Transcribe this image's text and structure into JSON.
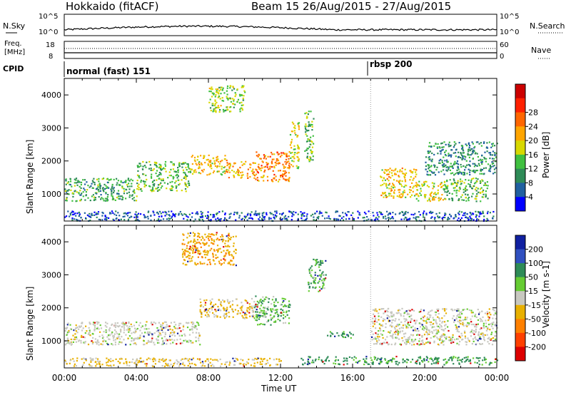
{
  "header": {
    "station": "Hokkaido (fitACF)",
    "beam_info": "Beam 15 26/Aug/2015 - 27/Aug/2015"
  },
  "top_panels": {
    "nsky_label": "N.Sky",
    "nsearch_label": "N.Search",
    "nsky_ticks": [
      "10^5",
      "10^0"
    ],
    "nsearch_ticks": [
      "10^5",
      "10^0"
    ],
    "freq_label_1": "Freq.",
    "freq_label_2": "[MHz]",
    "freq_ticks": [
      "18",
      "8"
    ],
    "nave_label": "Nave",
    "nave_ticks": [
      "60",
      "0"
    ],
    "cpid_label": "CPID",
    "cpid_modes": [
      {
        "name": "normal (fast) 151",
        "start_hour": 0
      },
      {
        "name": "rbsp 200",
        "start_hour": 17
      }
    ]
  },
  "chart_data": [
    {
      "type": "heatmap",
      "title": "",
      "ylabel": "Slant Range [km]",
      "xlabel": "Time UT",
      "xlim_hours": [
        0,
        24
      ],
      "ylim": [
        180,
        4500
      ],
      "y_ticks": [
        "1000",
        "2000",
        "3000",
        "4000"
      ],
      "x_ticks": [
        "00:00",
        "04:00",
        "08:00",
        "12:00",
        "16:00",
        "20:00",
        "00:00"
      ],
      "colorbar": {
        "label": "Power [dB]",
        "ticks": [
          "4",
          "8",
          "12",
          "16",
          "20",
          "24",
          "28"
        ],
        "colors": [
          "#0000ff",
          "#2060a0",
          "#2e8b57",
          "#40c040",
          "#d8d800",
          "#ffa500",
          "#ff6600",
          "#ff2000",
          "#cc0000"
        ]
      },
      "echo_regions": [
        {
          "t0": 0.0,
          "t1": 4.0,
          "r0": 800,
          "r1": 1500,
          "level": 14
        },
        {
          "t0": 4.0,
          "t1": 7.0,
          "r0": 1100,
          "r1": 2000,
          "level": 16
        },
        {
          "t0": 7.0,
          "t1": 9.0,
          "r0": 1600,
          "r1": 2200,
          "level": 22
        },
        {
          "t0": 9.0,
          "t1": 10.5,
          "r0": 1500,
          "r1": 2000,
          "level": 24
        },
        {
          "t0": 10.5,
          "t1": 12.5,
          "r0": 1400,
          "r1": 2300,
          "level": 26
        },
        {
          "t0": 12.5,
          "t1": 13.0,
          "r0": 1800,
          "r1": 3200,
          "level": 20
        },
        {
          "t0": 8.0,
          "t1": 10.0,
          "r0": 3500,
          "r1": 4300,
          "level": 18
        },
        {
          "t0": 13.3,
          "t1": 13.8,
          "r0": 2000,
          "r1": 3600,
          "level": 16
        },
        {
          "t0": 17.5,
          "t1": 19.5,
          "r0": 900,
          "r1": 1800,
          "level": 22
        },
        {
          "t0": 19.5,
          "t1": 21.0,
          "r0": 800,
          "r1": 1400,
          "level": 20
        },
        {
          "t0": 21.0,
          "t1": 23.5,
          "r0": 800,
          "r1": 1500,
          "level": 16
        },
        {
          "t0": 20.0,
          "t1": 24.0,
          "r0": 1600,
          "r1": 2600,
          "level": 12
        },
        {
          "t0": 0.0,
          "t1": 24.0,
          "r0": 200,
          "r1": 500,
          "level": 8
        }
      ]
    },
    {
      "type": "heatmap",
      "title": "",
      "ylabel": "Slant Range [km]",
      "xlabel": "Time UT",
      "xlim_hours": [
        0,
        24
      ],
      "ylim": [
        180,
        4500
      ],
      "y_ticks": [
        "1000",
        "2000",
        "3000",
        "4000"
      ],
      "x_ticks": [
        "00:00",
        "04:00",
        "08:00",
        "12:00",
        "16:00",
        "20:00",
        "00:00"
      ],
      "colorbar": {
        "label": "Velocity [m s-1]",
        "ticks": [
          "200",
          "100",
          "50",
          "15",
          "-15",
          "-50",
          "-100",
          "-200"
        ],
        "colors": [
          "#1020a0",
          "#3050c0",
          "#2e8b57",
          "#66cc33",
          "#c8c8c0",
          "#e8b000",
          "#ff8000",
          "#ff4000",
          "#dd0000"
        ]
      },
      "echo_regions": [
        {
          "t0": 0.0,
          "t1": 7.5,
          "r0": 900,
          "r1": 1600,
          "level": 0
        },
        {
          "t0": 7.5,
          "t1": 10.5,
          "r0": 1700,
          "r1": 2300,
          "level": -20
        },
        {
          "t0": 10.5,
          "t1": 12.5,
          "r0": 1500,
          "r1": 2400,
          "level": 30
        },
        {
          "t0": 6.5,
          "t1": 9.5,
          "r0": 3300,
          "r1": 4300,
          "level": -40
        },
        {
          "t0": 13.5,
          "t1": 14.5,
          "r0": 2500,
          "r1": 3500,
          "level": 30
        },
        {
          "t0": 14.5,
          "t1": 16.0,
          "r0": 1100,
          "r1": 1300,
          "level": 40
        },
        {
          "t0": 17.0,
          "t1": 24.0,
          "r0": 900,
          "r1": 2000,
          "level": 0
        },
        {
          "t0": 13.0,
          "t1": 24.0,
          "r0": 300,
          "r1": 550,
          "level": 40
        },
        {
          "t0": 0.0,
          "t1": 12.0,
          "r0": 250,
          "r1": 500,
          "level": -20
        }
      ]
    }
  ],
  "colors": {
    "background": "#ffffff",
    "axis": "#000000",
    "gray_scatter": "#c8c8c0"
  }
}
